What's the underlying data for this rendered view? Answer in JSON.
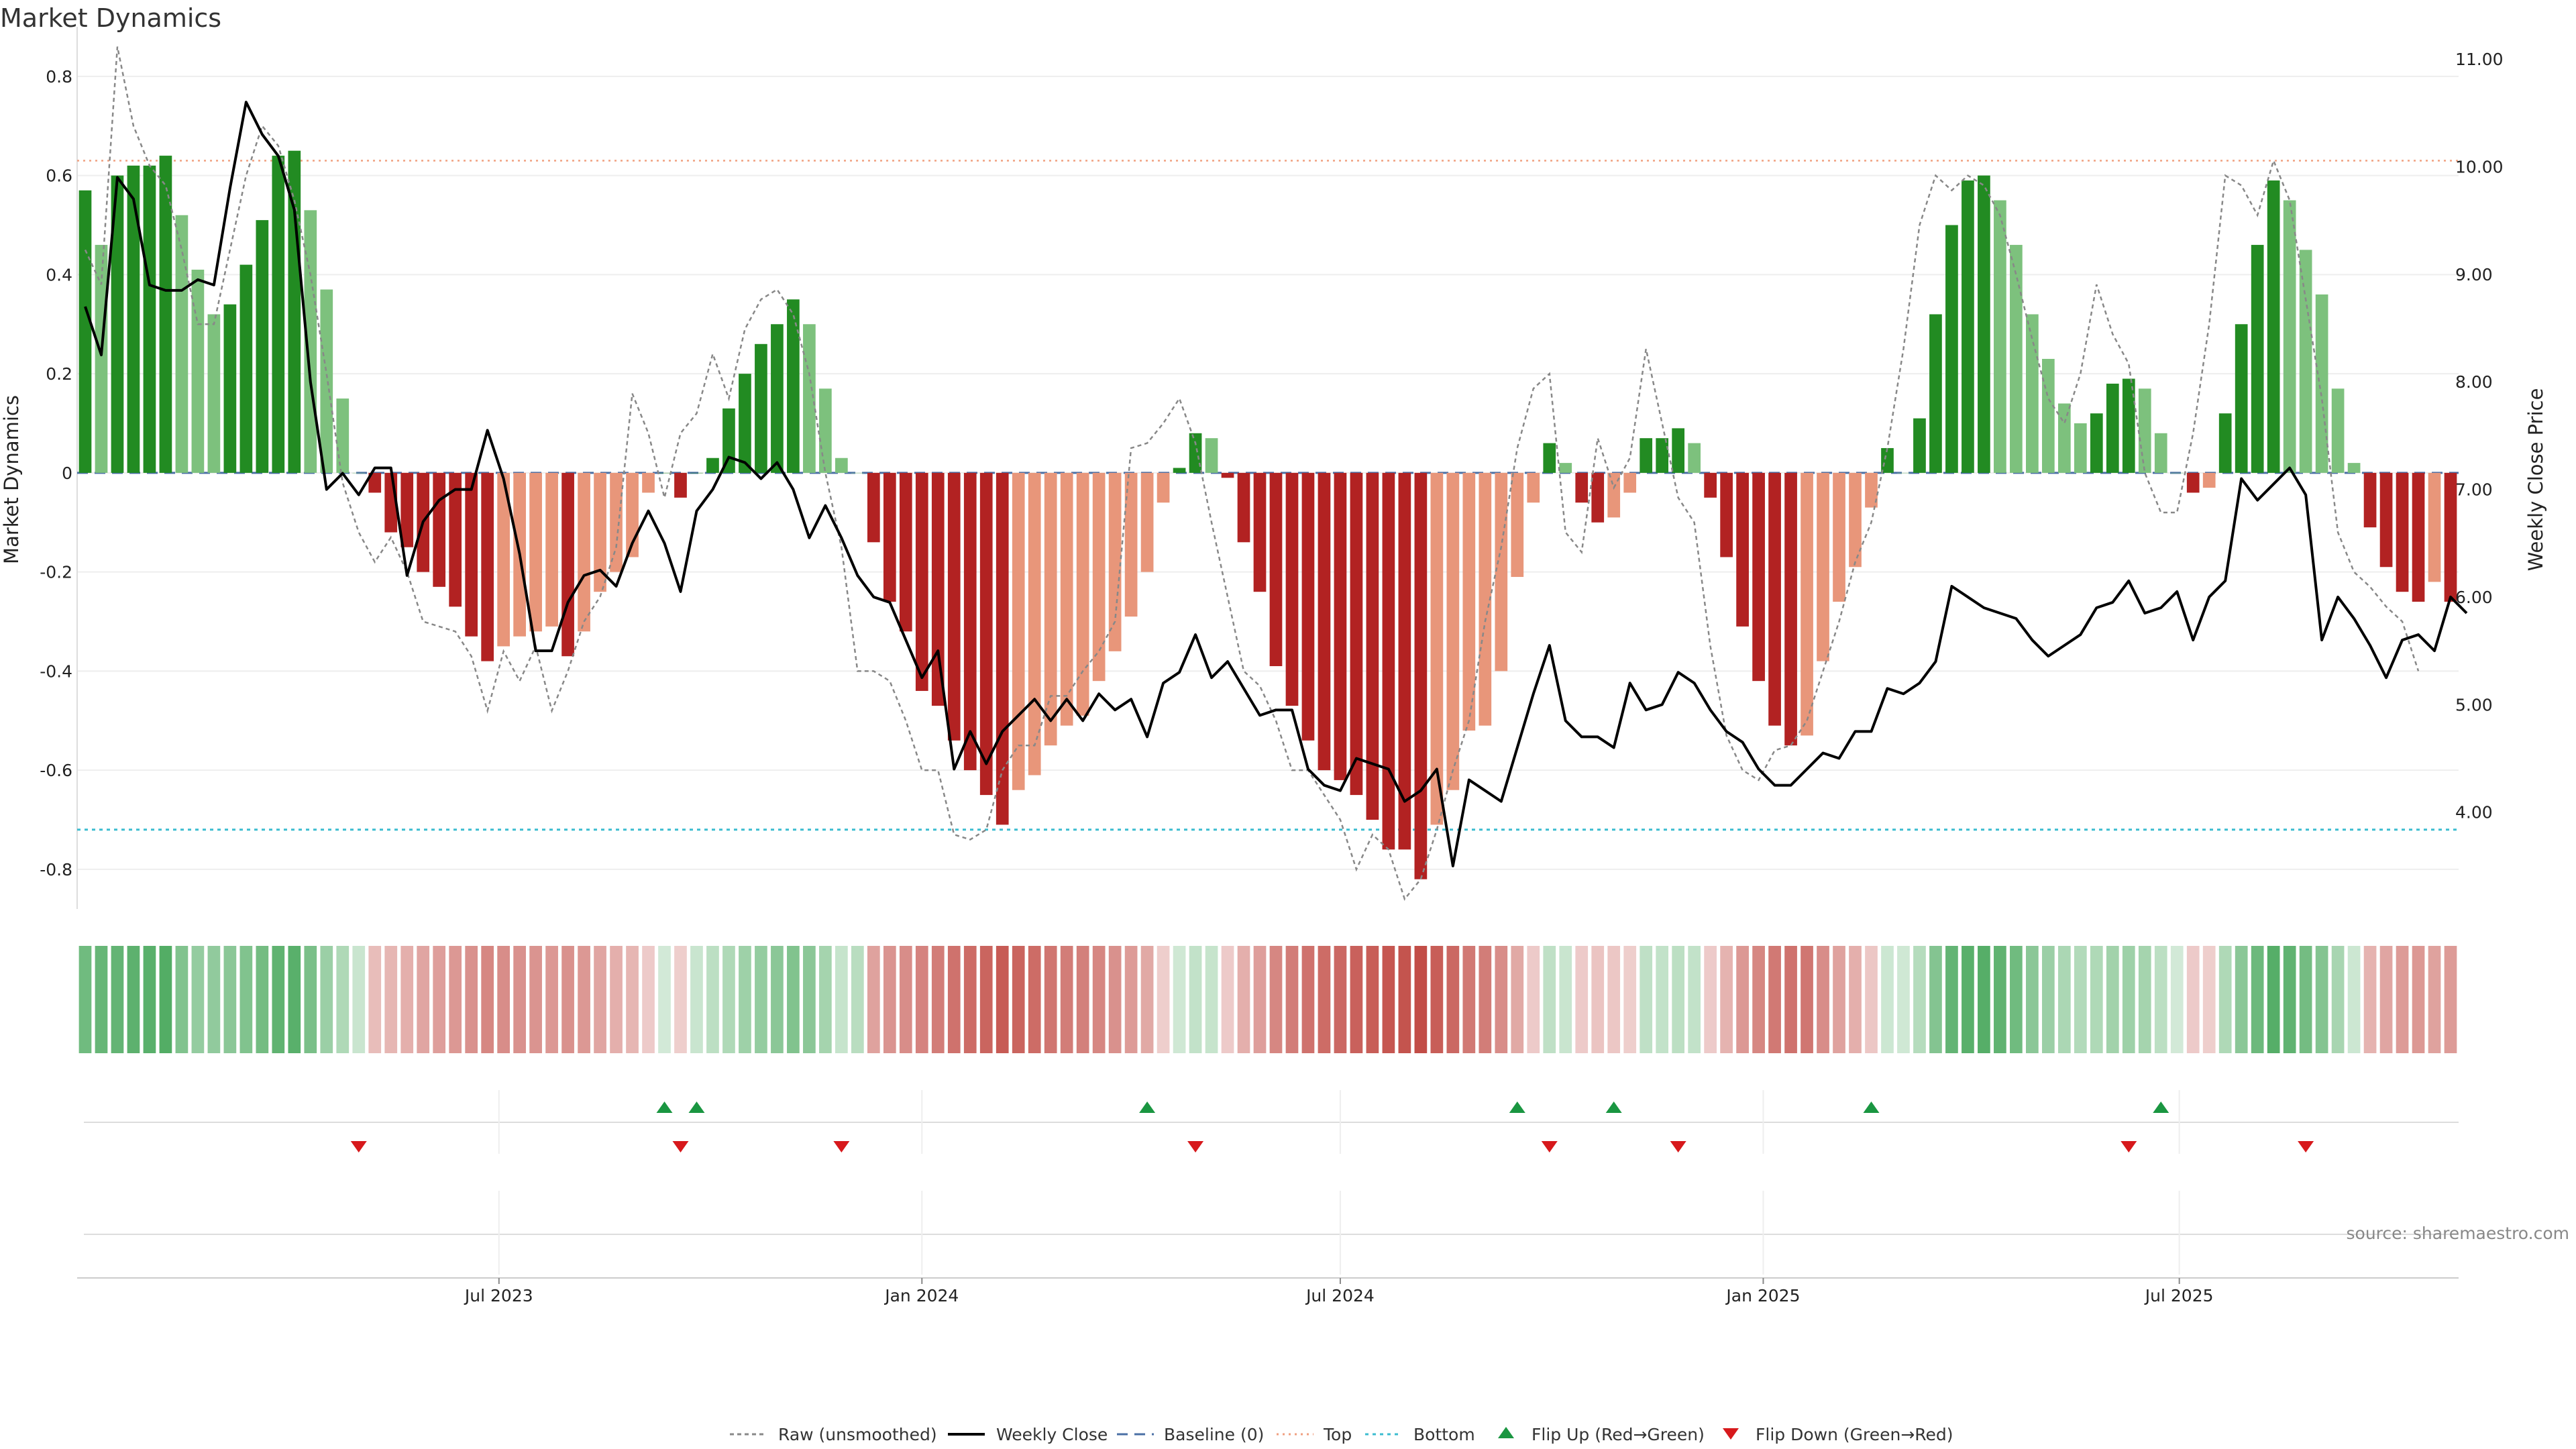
{
  "title": "Market Dynamics",
  "source": "source: sharemaestro.com",
  "chart_data": {
    "type": "bar",
    "x_start": "2023-01-02",
    "weeks": 148,
    "ylabel_left": "Market Dynamics",
    "ylabel_right": "Weekly Close Price",
    "ylim_left": [
      -0.88,
      0.9
    ],
    "ylim_right": [
      3.1,
      11.3
    ],
    "y_ticks_left": [
      "0.8",
      "0.6",
      "0.4",
      "0.2",
      "0",
      "-0.2",
      "-0.4",
      "-0.6",
      "-0.8"
    ],
    "y_ticks_right": [
      "11.00",
      "10.00",
      "9.00",
      "8.00",
      "7.00",
      "6.00",
      "5.00",
      "4.00"
    ],
    "x_ticks": [
      {
        "label": "Jul 2023",
        "date": "2023-07-01"
      },
      {
        "label": "Jan 2024",
        "date": "2024-01-01"
      },
      {
        "label": "Jul 2024",
        "date": "2024-07-01"
      },
      {
        "label": "Jan 2025",
        "date": "2025-01-01"
      },
      {
        "label": "Jul 2025",
        "date": "2025-07-01"
      }
    ],
    "top_level": 0.63,
    "bottom_level": -0.72,
    "baseline": 0,
    "dynamics": [
      0.57,
      0.46,
      0.6,
      0.62,
      0.62,
      0.64,
      0.52,
      0.41,
      0.32,
      0.34,
      0.42,
      0.51,
      0.64,
      0.65,
      0.53,
      0.37,
      0.15,
      0,
      -0.04,
      -0.12,
      -0.15,
      -0.2,
      -0.23,
      -0.27,
      -0.33,
      -0.38,
      -0.35,
      -0.33,
      -0.32,
      -0.31,
      -0.37,
      -0.32,
      -0.24,
      -0.2,
      -0.17,
      -0.04,
      0,
      -0.05,
      0,
      0.03,
      0.13,
      0.2,
      0.26,
      0.3,
      0.35,
      0.3,
      0.17,
      0.03,
      0,
      -0.14,
      -0.26,
      -0.32,
      -0.44,
      -0.47,
      -0.54,
      -0.6,
      -0.65,
      -0.71,
      -0.64,
      -0.61,
      -0.55,
      -0.51,
      -0.49,
      -0.42,
      -0.36,
      -0.29,
      -0.2,
      -0.06,
      0.01,
      0.08,
      0.07,
      -0.01,
      -0.14,
      -0.24,
      -0.39,
      -0.47,
      -0.54,
      -0.6,
      -0.62,
      -0.65,
      -0.7,
      -0.76,
      -0.76,
      -0.82,
      -0.71,
      -0.64,
      -0.52,
      -0.51,
      -0.4,
      -0.21,
      -0.06,
      0.06,
      0.02,
      -0.06,
      -0.1,
      -0.09,
      -0.04,
      0.07,
      0.07,
      0.09,
      0.06,
      -0.05,
      -0.17,
      -0.31,
      -0.42,
      -0.51,
      -0.55,
      -0.53,
      -0.38,
      -0.26,
      -0.19,
      -0.07,
      0.05,
      0,
      0.11,
      0.32,
      0.5,
      0.59,
      0.6,
      0.55,
      0.46,
      0.32,
      0.23,
      0.14,
      0.1,
      0.12,
      0.18,
      0.19,
      0.17,
      0.08,
      0,
      -0.04,
      -0.03,
      0.12,
      0.3,
      0.46,
      0.59,
      0.55,
      0.45,
      0.36,
      0.17,
      0.02,
      -0.11,
      -0.19,
      -0.24,
      -0.26,
      -0.22,
      -0.26
    ],
    "series": [
      {
        "name": "Raw (unsmoothed)",
        "values": [
          0.45,
          0.38,
          0.86,
          0.7,
          0.62,
          0.58,
          0.45,
          0.3,
          0.3,
          0.45,
          0.6,
          0.7,
          0.66,
          0.55,
          0.4,
          0.2,
          -0.02,
          -0.12,
          -0.18,
          -0.13,
          -0.2,
          -0.3,
          -0.31,
          -0.32,
          -0.37,
          -0.48,
          -0.36,
          -0.42,
          -0.35,
          -0.48,
          -0.4,
          -0.3,
          -0.25,
          -0.15,
          0.16,
          0.08,
          -0.05,
          0.08,
          0.12,
          0.24,
          0.15,
          0.29,
          0.35,
          0.37,
          0.32,
          0.2,
          0,
          -0.15,
          -0.4,
          -0.4,
          -0.42,
          -0.5,
          -0.6,
          -0.6,
          -0.73,
          -0.74,
          -0.72,
          -0.6,
          -0.55,
          -0.55,
          -0.45,
          -0.45,
          -0.4,
          -0.36,
          -0.3,
          0.05,
          0.06,
          0.1,
          0.15,
          0.06,
          -0.1,
          -0.25,
          -0.4,
          -0.43,
          -0.5,
          -0.6,
          -0.6,
          -0.65,
          -0.7,
          -0.8,
          -0.73,
          -0.76,
          -0.86,
          -0.82,
          -0.72,
          -0.6,
          -0.5,
          -0.3,
          -0.15,
          0.05,
          0.17,
          0.2,
          -0.12,
          -0.16,
          0.07,
          -0.03,
          0.03,
          0.25,
          0.1,
          -0.05,
          -0.1,
          -0.35,
          -0.53,
          -0.6,
          -0.62,
          -0.56,
          -0.55,
          -0.5,
          -0.4,
          -0.3,
          -0.18,
          -0.1,
          0.05,
          0.25,
          0.5,
          0.6,
          0.57,
          0.6,
          0.58,
          0.52,
          0.4,
          0.27,
          0.15,
          0.1,
          0.2,
          0.38,
          0.28,
          0.22,
          0,
          -0.08,
          -0.08,
          0.08,
          0.3,
          0.6,
          0.58,
          0.52,
          0.63,
          0.55,
          0.35,
          0.15,
          -0.12,
          -0.2,
          -0.23,
          -0.27,
          -0.3,
          -0.4
        ]
      },
      {
        "name": "Weekly Close",
        "values": [
          8.7,
          8.25,
          9.9,
          9.7,
          8.9,
          8.85,
          8.85,
          8.95,
          8.9,
          9.8,
          10.6,
          10.3,
          10.1,
          9.6,
          8.0,
          7.0,
          7.15,
          6.95,
          7.2,
          7.2,
          6.2,
          6.7,
          6.9,
          7.0,
          7.0,
          7.55,
          7.1,
          6.4,
          5.5,
          5.5,
          5.95,
          6.2,
          6.25,
          6.1,
          6.5,
          6.8,
          6.5,
          6.05,
          6.8,
          7.0,
          7.3,
          7.25,
          7.1,
          7.25,
          7.0,
          6.55,
          6.85,
          6.55,
          6.2,
          6.0,
          5.95,
          5.6,
          5.25,
          5.5,
          4.4,
          4.75,
          4.45,
          4.75,
          4.9,
          5.05,
          4.85,
          5.05,
          4.85,
          5.1,
          4.95,
          5.05,
          4.7,
          5.2,
          5.3,
          5.65,
          5.25,
          5.4,
          5.15,
          4.9,
          4.95,
          4.95,
          4.4,
          4.25,
          4.2,
          4.5,
          4.45,
          4.4,
          4.1,
          4.2,
          4.4,
          3.5,
          4.3,
          4.2,
          4.1,
          4.6,
          5.1,
          5.55,
          4.85,
          4.7,
          4.7,
          4.6,
          5.2,
          4.95,
          5.0,
          5.3,
          5.2,
          4.95,
          4.75,
          4.65,
          4.4,
          4.25,
          4.25,
          4.4,
          4.55,
          4.5,
          4.75,
          4.75,
          5.15,
          5.1,
          5.2,
          5.4,
          6.1,
          6.0,
          5.9,
          5.85,
          5.8,
          5.6,
          5.45,
          5.55,
          5.65,
          5.9,
          5.95,
          6.15,
          5.85,
          5.9,
          6.05,
          5.6,
          6.0,
          6.15,
          7.1,
          6.9,
          7.05,
          7.2,
          6.95,
          5.6,
          6.0,
          5.8,
          5.55,
          5.25,
          5.6,
          5.65,
          5.5,
          6.0,
          5.85
        ]
      }
    ],
    "strength": [
      0.72,
      0.78,
      0.8,
      0.84,
      0.86,
      0.9,
      0.62,
      0.5,
      0.52,
      0.56,
      0.62,
      0.7,
      0.82,
      0.86,
      0.66,
      0.46,
      0.34,
      0.18,
      0.24,
      0.28,
      0.32,
      0.38,
      0.42,
      0.46,
      0.5,
      0.56,
      0.52,
      0.5,
      0.48,
      0.46,
      0.5,
      0.46,
      0.38,
      0.32,
      0.28,
      0.16,
      0.12,
      0.14,
      0.18,
      0.26,
      0.34,
      0.44,
      0.5,
      0.56,
      0.62,
      0.56,
      0.4,
      0.2,
      0.28,
      0.4,
      0.48,
      0.52,
      0.58,
      0.62,
      0.68,
      0.72,
      0.76,
      0.82,
      0.76,
      0.72,
      0.66,
      0.62,
      0.6,
      0.56,
      0.5,
      0.44,
      0.36,
      0.14,
      0.14,
      0.22,
      0.2,
      0.16,
      0.32,
      0.42,
      0.56,
      0.62,
      0.68,
      0.72,
      0.74,
      0.78,
      0.8,
      0.84,
      0.86,
      0.9,
      0.8,
      0.74,
      0.64,
      0.62,
      0.52,
      0.36,
      0.16,
      0.24,
      0.18,
      0.16,
      0.2,
      0.18,
      0.14,
      0.24,
      0.22,
      0.26,
      0.22,
      0.16,
      0.3,
      0.46,
      0.56,
      0.64,
      0.68,
      0.66,
      0.52,
      0.4,
      0.32,
      0.18,
      0.16,
      0.14,
      0.3,
      0.6,
      0.8,
      0.86,
      0.88,
      0.82,
      0.72,
      0.56,
      0.46,
      0.36,
      0.32,
      0.34,
      0.42,
      0.44,
      0.4,
      0.26,
      0.12,
      0.16,
      0.14,
      0.34,
      0.56,
      0.74,
      0.88,
      0.82,
      0.7,
      0.6,
      0.38,
      0.16,
      0.3,
      0.38,
      0.44,
      0.46,
      0.4,
      0.44
    ],
    "flip_up_weeks": [
      36,
      38,
      66,
      89,
      95,
      111,
      129
    ],
    "flip_down_weeks": [
      17,
      37,
      47,
      69,
      91,
      99,
      127,
      138
    ]
  },
  "legend": [
    {
      "key": "raw",
      "label": "Raw (unsmoothed)"
    },
    {
      "key": "close",
      "label": "Weekly Close"
    },
    {
      "key": "baseline",
      "label": "Baseline (0)"
    },
    {
      "key": "top",
      "label": "Top"
    },
    {
      "key": "bottom",
      "label": "Bottom"
    },
    {
      "key": "flipup",
      "label": "Flip Up (Red→Green)"
    },
    {
      "key": "flipdown",
      "label": "Flip Down (Green→Red)"
    }
  ],
  "colors": {
    "bar_green_strong": "#228b22",
    "bar_green_light": "#7dc17d",
    "bar_red_strong": "#b22222",
    "bar_red_light": "#e8967a",
    "raw": "#888888",
    "close": "#000000",
    "baseline": "#4a6fa5",
    "top": "#f0a080",
    "bottom": "#3cbcd0",
    "flip_up": "#1a9641",
    "flip_down": "#d7191c",
    "strip_green": "#2e9b44",
    "strip_red": "#b5271f"
  }
}
